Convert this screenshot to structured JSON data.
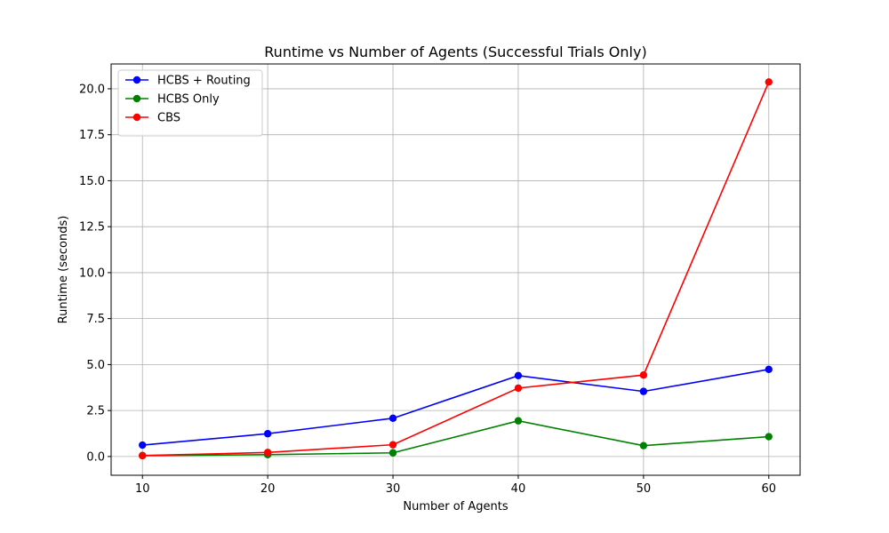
{
  "chart_data": {
    "type": "line",
    "title": "Runtime vs Number of Agents (Successful Trials Only)",
    "xlabel": "Number of Agents",
    "ylabel": "Runtime (seconds)",
    "x": [
      10,
      20,
      30,
      40,
      50,
      60
    ],
    "xlim": [
      7.5,
      62.5
    ],
    "ylim": [
      -1.02,
      21.35
    ],
    "xticks": [
      10,
      20,
      30,
      40,
      50,
      60
    ],
    "xtick_labels": [
      "10",
      "20",
      "30",
      "40",
      "50",
      "60"
    ],
    "yticks": [
      0,
      2.5,
      5,
      7.5,
      10,
      12.5,
      15,
      17.5,
      20
    ],
    "ytick_labels": [
      "0.0",
      "2.5",
      "5.0",
      "7.5",
      "10.0",
      "12.5",
      "15.0",
      "17.5",
      "20.0"
    ],
    "grid": true,
    "legend_position": "upper-left",
    "series": [
      {
        "name": "HCBS + Routing",
        "color": "#0000ff",
        "values": [
          0.62,
          1.24,
          2.08,
          4.4,
          3.54,
          4.74
        ]
      },
      {
        "name": "HCBS Only",
        "color": "#008000",
        "values": [
          0.05,
          0.1,
          0.2,
          1.94,
          0.59,
          1.08
        ]
      },
      {
        "name": "CBS",
        "color": "#ff0000",
        "values": [
          0.05,
          0.22,
          0.64,
          3.72,
          4.43,
          20.37
        ]
      }
    ]
  }
}
